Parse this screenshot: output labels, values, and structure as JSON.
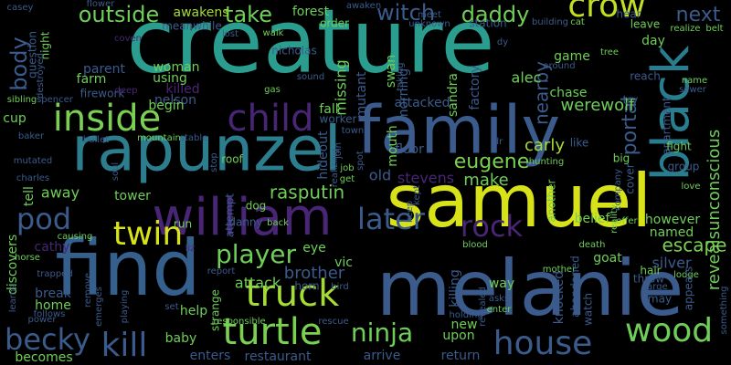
{
  "words": [
    {
      "text": "creature",
      "color": "#2a9d8f"
    },
    {
      "text": "samuel",
      "color": "#d7e219"
    },
    {
      "text": "melanie",
      "color": "#3b5b8c"
    },
    {
      "text": "find",
      "color": "#35608d"
    },
    {
      "text": "family",
      "color": "#3b5b8c"
    },
    {
      "text": "rapunzel",
      "color": "#2c7e8e"
    },
    {
      "text": "william",
      "color": "#482575"
    },
    {
      "text": "black",
      "color": "#287d8e"
    },
    {
      "text": "inside",
      "color": "#7ad151"
    },
    {
      "text": "child",
      "color": "#482575"
    },
    {
      "text": "crow",
      "color": "#c2df23"
    },
    {
      "text": "twin",
      "color": "#d7e219"
    },
    {
      "text": "pod",
      "color": "#3b5b8c"
    },
    {
      "text": "truck",
      "color": "#a5db36"
    },
    {
      "text": "turtle",
      "color": "#7ad151"
    },
    {
      "text": "wood",
      "color": "#6ece58"
    },
    {
      "text": "house",
      "color": "#3b5b8c"
    },
    {
      "text": "kill",
      "color": "#3b5b8c"
    },
    {
      "text": "becky",
      "color": "#3b5b8c"
    },
    {
      "text": "player",
      "color": "#6ece58"
    },
    {
      "text": "later",
      "color": "#3b5b8c"
    },
    {
      "text": "rock",
      "color": "#482575"
    },
    {
      "text": "ninja",
      "color": "#6ece58"
    },
    {
      "text": "escape",
      "color": "#7ad151"
    },
    {
      "text": "eugene",
      "color": "#7ad151"
    },
    {
      "text": "outside",
      "color": "#6ece58"
    },
    {
      "text": "take",
      "color": "#6ece58"
    },
    {
      "text": "witch",
      "color": "#3b5b8c"
    },
    {
      "text": "daddy",
      "color": "#6ece58"
    },
    {
      "text": "next",
      "color": "#3b5b8c"
    },
    {
      "text": "body",
      "color": "#3b5b8c"
    },
    {
      "text": "portal",
      "color": "#3b5b8c"
    },
    {
      "text": "revealsunconscious",
      "color": "#6ece58"
    },
    {
      "text": "nearby",
      "color": "#3b5b8c"
    },
    {
      "text": "werewolf",
      "color": "#6ece58"
    },
    {
      "text": "alec",
      "color": "#6ece58"
    },
    {
      "text": "rasputin",
      "color": "#6ece58"
    },
    {
      "text": "carly",
      "color": "#a5db36"
    },
    {
      "text": "make",
      "color": "#6ece58"
    },
    {
      "text": "brother",
      "color": "#3b5b8c"
    },
    {
      "text": "attack",
      "color": "#6ece58"
    },
    {
      "text": "silver",
      "color": "#3b5b8c"
    },
    {
      "text": "goat",
      "color": "#6ece58"
    },
    {
      "text": "hair",
      "color": "#6ece58"
    },
    {
      "text": "away",
      "color": "#6ece58"
    },
    {
      "text": "tower",
      "color": "#6ece58"
    },
    {
      "text": "cathy",
      "color": "#482575"
    },
    {
      "text": "stevens",
      "color": "#482575"
    },
    {
      "text": "awakens",
      "color": "#a5db36"
    },
    {
      "text": "forest",
      "color": "#6ece58"
    },
    {
      "text": "killed",
      "color": "#482575"
    },
    {
      "text": "nelson",
      "color": "#3b5b8c"
    },
    {
      "text": "parent",
      "color": "#3b5b8c"
    },
    {
      "text": "farm",
      "color": "#6ece58"
    },
    {
      "text": "woman",
      "color": "#6ece58"
    },
    {
      "text": "using",
      "color": "#6ece58"
    },
    {
      "text": "begin",
      "color": "#6ece58"
    },
    {
      "text": "missing",
      "color": "#6ece58"
    },
    {
      "text": "mutant",
      "color": "#3b5b8c"
    },
    {
      "text": "sandra",
      "color": "#6ece58"
    },
    {
      "text": "morning",
      "color": "#3b5b8c"
    },
    {
      "text": "attacked",
      "color": "#3b5b8c"
    },
    {
      "text": "factory",
      "color": "#3b5b8c"
    },
    {
      "text": "game",
      "color": "#6ece58"
    },
    {
      "text": "chase",
      "color": "#6ece58"
    },
    {
      "text": "day",
      "color": "#6ece58"
    },
    {
      "text": "however",
      "color": "#6ece58"
    },
    {
      "text": "named",
      "color": "#6ece58"
    },
    {
      "text": "belief",
      "color": "#6ece58"
    },
    {
      "text": "eye",
      "color": "#6ece58"
    },
    {
      "text": "vic",
      "color": "#6ece58"
    },
    {
      "text": "horn",
      "color": "#3b5b8c"
    },
    {
      "text": "way",
      "color": "#6ece58"
    },
    {
      "text": "killing",
      "color": "#3b5b8c"
    },
    {
      "text": "knocked",
      "color": "#3b5b8c"
    },
    {
      "text": "new",
      "color": "#6ece58"
    },
    {
      "text": "upon",
      "color": "#6ece58"
    },
    {
      "text": "return",
      "color": "#3b5b8c"
    },
    {
      "text": "arrive",
      "color": "#3b5b8c"
    },
    {
      "text": "enters",
      "color": "#3b5b8c"
    },
    {
      "text": "restaurant",
      "color": "#3b5b8c"
    },
    {
      "text": "baby",
      "color": "#6ece58"
    },
    {
      "text": "help",
      "color": "#6ece58"
    },
    {
      "text": "home",
      "color": "#6ece58"
    },
    {
      "text": "break",
      "color": "#3b5b8c"
    },
    {
      "text": "becomes",
      "color": "#6ece58"
    },
    {
      "text": "discovers",
      "color": "#6ece58"
    },
    {
      "text": "tell",
      "color": "#6ece58"
    },
    {
      "text": "cup",
      "color": "#6ece58"
    },
    {
      "text": "fall",
      "color": "#6ece58"
    },
    {
      "text": "old",
      "color": "#3b5b8c"
    },
    {
      "text": "worker",
      "color": "#3b5b8c"
    },
    {
      "text": "hideout",
      "color": "#3b5b8c"
    },
    {
      "text": "floor",
      "color": "#3b5b8c"
    },
    {
      "text": "mouth",
      "color": "#6ece58"
    },
    {
      "text": "meanwhile",
      "color": "#3b5b8c"
    },
    {
      "text": "nicholas",
      "color": "#3b5b8c"
    },
    {
      "text": "order",
      "color": "#6ece58"
    },
    {
      "text": "night",
      "color": "#6ece58"
    },
    {
      "text": "question",
      "color": "#3b5b8c"
    },
    {
      "text": "firework",
      "color": "#3b5b8c"
    },
    {
      "text": "swan",
      "color": "#6ece58"
    },
    {
      "text": "taking",
      "color": "#3b5b8c"
    },
    {
      "text": "casey",
      "color": "#3b5b8c"
    },
    {
      "text": "flower",
      "color": "#3b5b8c"
    },
    {
      "text": "awaken",
      "color": "#3b5b8c"
    },
    {
      "text": "station",
      "color": "#3b5b8c"
    },
    {
      "text": "leave",
      "color": "#6ece58"
    },
    {
      "text": "hear",
      "color": "#3b5b8c"
    },
    {
      "text": "reach",
      "color": "#3b5b8c"
    },
    {
      "text": "apartment",
      "color": "#3b5b8c"
    },
    {
      "text": "fight",
      "color": "#6ece58"
    },
    {
      "text": "group",
      "color": "#3b5b8c"
    },
    {
      "text": "big",
      "color": "#6ece58"
    },
    {
      "text": "like",
      "color": "#3b5b8c"
    },
    {
      "text": "try",
      "color": "#3b5b8c"
    },
    {
      "text": "cover",
      "color": "#3b5b8c"
    },
    {
      "text": "another",
      "color": "#6ece58"
    },
    {
      "text": "dog",
      "color": "#6ece58"
    },
    {
      "text": "run",
      "color": "#6ece58"
    },
    {
      "text": "danny",
      "color": "#3b5b8c"
    },
    {
      "text": "attempt",
      "color": "#3b5b8c"
    },
    {
      "text": "roof",
      "color": "#6ece58"
    },
    {
      "text": "stop",
      "color": "#3b5b8c"
    },
    {
      "text": "mountain",
      "color": "#6ece58"
    },
    {
      "text": "stable",
      "color": "#3b5b8c"
    },
    {
      "text": "baker",
      "color": "#3b5b8c"
    },
    {
      "text": "bullet",
      "color": "#3b5b8c"
    },
    {
      "text": "mutated",
      "color": "#3b5b8c"
    },
    {
      "text": "charles",
      "color": "#3b5b8c"
    },
    {
      "text": "causing",
      "color": "#6ece58"
    },
    {
      "text": "horse",
      "color": "#6ece58"
    },
    {
      "text": "trapped",
      "color": "#3b5b8c"
    },
    {
      "text": "learns",
      "color": "#3b5b8c"
    },
    {
      "text": "follows",
      "color": "#3b5b8c"
    },
    {
      "text": "power",
      "color": "#3b5b8c"
    },
    {
      "text": "responsible",
      "color": "#6ece58"
    },
    {
      "text": "rescue",
      "color": "#3b5b8c"
    },
    {
      "text": "report",
      "color": "#3b5b8c"
    },
    {
      "text": "blood",
      "color": "#6ece58"
    },
    {
      "text": "death",
      "color": "#6ece58"
    },
    {
      "text": "mother",
      "color": "#6ece58"
    },
    {
      "text": "lodge",
      "color": "#6ece58"
    },
    {
      "text": "throw",
      "color": "#3b5b8c"
    },
    {
      "text": "may",
      "color": "#3b5b8c"
    },
    {
      "text": "appears",
      "color": "#3b5b8c"
    },
    {
      "text": "something",
      "color": "#3b5b8c"
    },
    {
      "text": "abandoned",
      "color": "#3b5b8c"
    },
    {
      "text": "watch",
      "color": "#3b5b8c"
    },
    {
      "text": "enter",
      "color": "#6ece58"
    },
    {
      "text": "asks",
      "color": "#3b5b8c"
    },
    {
      "text": "revealed",
      "color": "#3b5b8c"
    },
    {
      "text": "holding",
      "color": "#3b5b8c"
    },
    {
      "text": "offer",
      "color": "#6ece58"
    },
    {
      "text": "reality",
      "color": "#6ece58"
    },
    {
      "text": "company",
      "color": "#3b5b8c"
    },
    {
      "text": "love",
      "color": "#6ece58"
    },
    {
      "text": "sewer",
      "color": "#3b5b8c"
    },
    {
      "text": "name",
      "color": "#6ece58"
    },
    {
      "text": "realize",
      "color": "#6ece58"
    },
    {
      "text": "belt",
      "color": "#6ece58"
    },
    {
      "text": "tree",
      "color": "#6ece58"
    },
    {
      "text": "cat",
      "color": "#6ece58"
    },
    {
      "text": "building",
      "color": "#3b5b8c"
    },
    {
      "text": "dy",
      "color": "#3b5b8c"
    },
    {
      "text": "unknown",
      "color": "#3b5b8c"
    },
    {
      "text": "meet",
      "color": "#3b5b8c"
    },
    {
      "text": "walk",
      "color": "#6ece58"
    },
    {
      "text": "lost",
      "color": "#3b5b8c"
    },
    {
      "text": "coven",
      "color": "#482575"
    },
    {
      "text": "gas",
      "color": "#6ece58"
    },
    {
      "text": "sound",
      "color": "#3b5b8c"
    },
    {
      "text": "spencer",
      "color": "#3b5b8c"
    },
    {
      "text": "sibling",
      "color": "#6ece58"
    },
    {
      "text": "destroyed",
      "color": "#3b5b8c"
    },
    {
      "text": "deep",
      "color": "#482575"
    },
    {
      "text": "town",
      "color": "#3b5b8c"
    },
    {
      "text": "hunting",
      "color": "#6ece58"
    },
    {
      "text": "keep",
      "color": "#3b5b8c"
    },
    {
      "text": "kept",
      "color": "#3b5b8c"
    },
    {
      "text": "dr",
      "color": "#3b5b8c"
    },
    {
      "text": "get",
      "color": "#6ece58"
    },
    {
      "text": "job",
      "color": "#6ece58"
    },
    {
      "text": "spot",
      "color": "#3b5b8c"
    },
    {
      "text": "join",
      "color": "#3b5b8c"
    },
    {
      "text": "liz",
      "color": "#482575"
    },
    {
      "text": "bird",
      "color": "#3b5b8c"
    },
    {
      "text": "playing",
      "color": "#3b5b8c"
    },
    {
      "text": "set",
      "color": "#3b5b8c"
    },
    {
      "text": "strange",
      "color": "#6ece58"
    },
    {
      "text": "remove",
      "color": "#3b5b8c"
    },
    {
      "text": "emerges",
      "color": "#3b5b8c"
    },
    {
      "text": "soul",
      "color": "#3b5b8c"
    },
    {
      "text": "back",
      "color": "#6ece58"
    },
    {
      "text": "large",
      "color": "#3b5b8c"
    },
    {
      "text": "around",
      "color": "#3b5b8c"
    },
    {
      "text": "realizing",
      "color": "#3b5b8c"
    }
  ]
}
